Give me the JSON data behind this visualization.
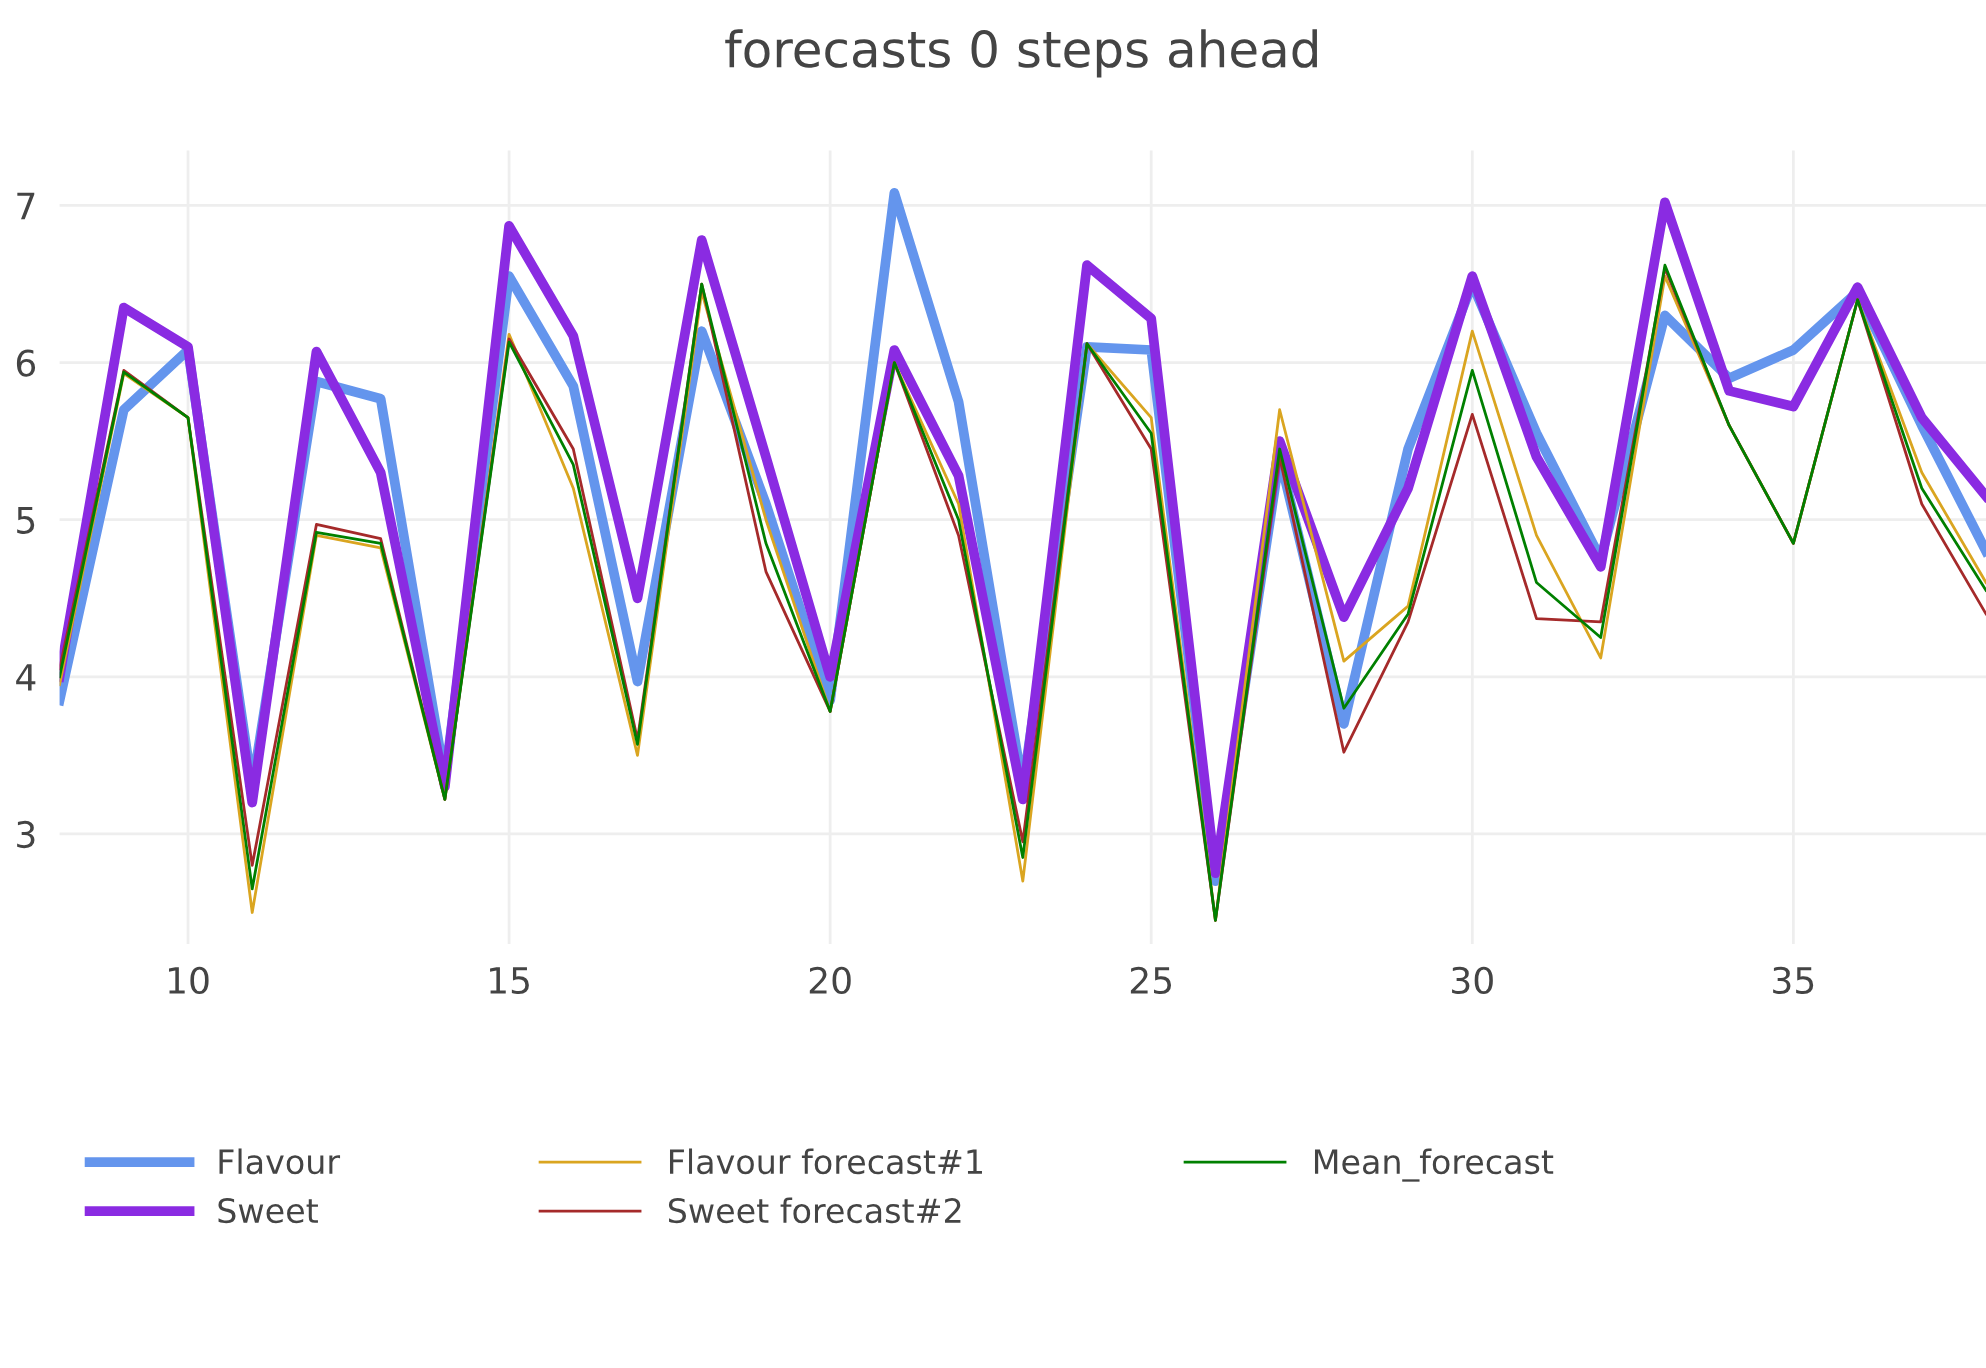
{
  "chart_data": {
    "type": "line",
    "title": "forecasts 0 steps ahead",
    "x": [
      8,
      9,
      10,
      11,
      12,
      13,
      14,
      15,
      16,
      17,
      18,
      19,
      20,
      21,
      22,
      23,
      24,
      25,
      26,
      27,
      28,
      29,
      30,
      31,
      32,
      33,
      34,
      35,
      36,
      37,
      38
    ],
    "series": [
      {
        "name": "Flavour",
        "color": "#6495ed",
        "values": [
          3.85,
          5.7,
          6.08,
          3.3,
          5.88,
          5.77,
          3.35,
          6.55,
          5.85,
          3.97,
          6.2,
          5.1,
          3.85,
          7.08,
          5.75,
          3.3,
          6.1,
          6.08,
          2.7,
          5.4,
          3.7,
          5.45,
          6.5,
          5.55,
          4.75,
          6.3,
          5.9,
          6.08,
          6.45,
          5.6,
          4.8
        ]
      },
      {
        "name": "Sweet",
        "color": "#8a2be2",
        "values": [
          4.0,
          6.35,
          6.1,
          3.2,
          6.07,
          5.3,
          3.3,
          6.87,
          6.17,
          4.5,
          6.78,
          5.4,
          4.0,
          6.08,
          5.28,
          3.22,
          6.62,
          6.28,
          2.75,
          5.5,
          4.38,
          5.2,
          6.55,
          5.4,
          4.7,
          7.02,
          5.82,
          5.72,
          6.48,
          5.65,
          5.15
        ]
      },
      {
        "name": "Flavour forecast#1",
        "color": "#daa520",
        "values": [
          3.95,
          5.93,
          5.65,
          2.5,
          4.9,
          4.82,
          3.22,
          6.18,
          5.2,
          3.5,
          6.45,
          5.0,
          3.78,
          6.0,
          5.1,
          2.7,
          6.12,
          5.65,
          2.45,
          5.7,
          4.1,
          4.45,
          6.2,
          4.9,
          4.12,
          6.55,
          5.6,
          4.85,
          6.4,
          5.3,
          4.6
        ]
      },
      {
        "name": "Sweet forecast#2",
        "color": "#a52a2a",
        "values": [
          4.05,
          5.95,
          5.65,
          2.8,
          4.97,
          4.88,
          3.22,
          6.15,
          5.45,
          3.6,
          6.5,
          4.67,
          3.78,
          6.0,
          4.9,
          2.95,
          6.12,
          5.45,
          2.45,
          5.4,
          3.52,
          4.35,
          5.67,
          4.37,
          4.35,
          6.6,
          5.6,
          4.85,
          6.4,
          5.1,
          4.4
        ]
      },
      {
        "name": "Mean_forecast",
        "color": "#008000",
        "values": [
          4.0,
          5.94,
          5.65,
          2.65,
          4.92,
          4.85,
          3.22,
          6.13,
          5.35,
          3.57,
          6.5,
          4.85,
          3.78,
          6.0,
          5.0,
          2.85,
          6.12,
          5.55,
          2.45,
          5.45,
          3.8,
          4.4,
          5.95,
          4.6,
          4.25,
          6.62,
          5.6,
          4.85,
          6.4,
          5.2,
          4.55
        ]
      }
    ],
    "xlim": [
      8,
      38
    ],
    "ylim": [
      2.3,
      7.35
    ],
    "xticks": [
      10,
      15,
      20,
      25,
      30,
      35
    ],
    "yticks": [
      3,
      4,
      5,
      6,
      7
    ],
    "grid": true,
    "legend": "bottom",
    "marker": "none",
    "line_style": "solid"
  }
}
